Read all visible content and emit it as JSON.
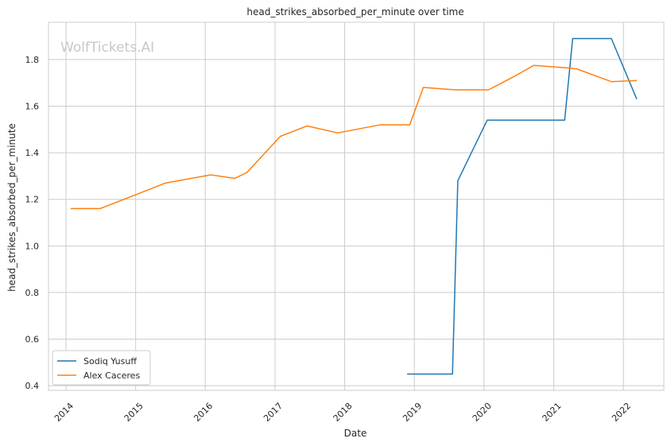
{
  "chart_data": {
    "type": "line",
    "title": "head_strikes_absorbed_per_minute over time",
    "xlabel": "Date",
    "ylabel": "head_strikes_absorbed_per_minute",
    "watermark": "WolfTickets.AI",
    "xlim": [
      "2013-10-01",
      "2022-08-01"
    ],
    "ylim": [
      0.38,
      1.96
    ],
    "x_ticks": [
      "2014",
      "2015",
      "2016",
      "2017",
      "2018",
      "2019",
      "2020",
      "2021",
      "2022"
    ],
    "y_ticks": [
      0.4,
      0.6,
      0.8,
      1.0,
      1.2,
      1.4,
      1.6,
      1.8
    ],
    "y_tick_labels": [
      "0.4",
      "0.6",
      "0.8",
      "1.0",
      "1.2",
      "1.4",
      "1.6",
      "1.8"
    ],
    "grid": true,
    "legend_position": "lower-left",
    "series": [
      {
        "name": "Sodiq Yusuff",
        "color": "#1f77b4",
        "points": [
          {
            "x": "2018-11-24",
            "y": 0.45
          },
          {
            "x": "2019-07-20",
            "y": 0.45
          },
          {
            "x": "2019-08-17",
            "y": 1.28
          },
          {
            "x": "2020-01-18",
            "y": 1.54
          },
          {
            "x": "2021-02-27",
            "y": 1.54
          },
          {
            "x": "2021-04-10",
            "y": 1.89
          },
          {
            "x": "2021-10-30",
            "y": 1.89
          },
          {
            "x": "2022-03-12",
            "y": 1.63
          }
        ]
      },
      {
        "name": "Alex Caceres",
        "color": "#ff7f0e",
        "points": [
          {
            "x": "2014-01-25",
            "y": 1.16
          },
          {
            "x": "2014-06-28",
            "y": 1.16
          },
          {
            "x": "2015-01-03",
            "y": 1.22
          },
          {
            "x": "2015-06-06",
            "y": 1.27
          },
          {
            "x": "2016-01-30",
            "y": 1.305
          },
          {
            "x": "2016-06-04",
            "y": 1.29
          },
          {
            "x": "2016-08-06",
            "y": 1.315
          },
          {
            "x": "2017-01-28",
            "y": 1.47
          },
          {
            "x": "2017-06-17",
            "y": 1.515
          },
          {
            "x": "2017-11-25",
            "y": 1.485
          },
          {
            "x": "2018-07-07",
            "y": 1.52
          },
          {
            "x": "2018-12-08",
            "y": 1.52
          },
          {
            "x": "2019-02-17",
            "y": 1.68
          },
          {
            "x": "2019-08-03",
            "y": 1.67
          },
          {
            "x": "2020-01-25",
            "y": 1.67
          },
          {
            "x": "2020-06-13",
            "y": 1.73
          },
          {
            "x": "2020-09-19",
            "y": 1.775
          },
          {
            "x": "2021-02-27",
            "y": 1.765
          },
          {
            "x": "2021-05-01",
            "y": 1.76
          },
          {
            "x": "2021-10-30",
            "y": 1.705
          },
          {
            "x": "2022-03-12",
            "y": 1.71
          }
        ]
      }
    ]
  }
}
